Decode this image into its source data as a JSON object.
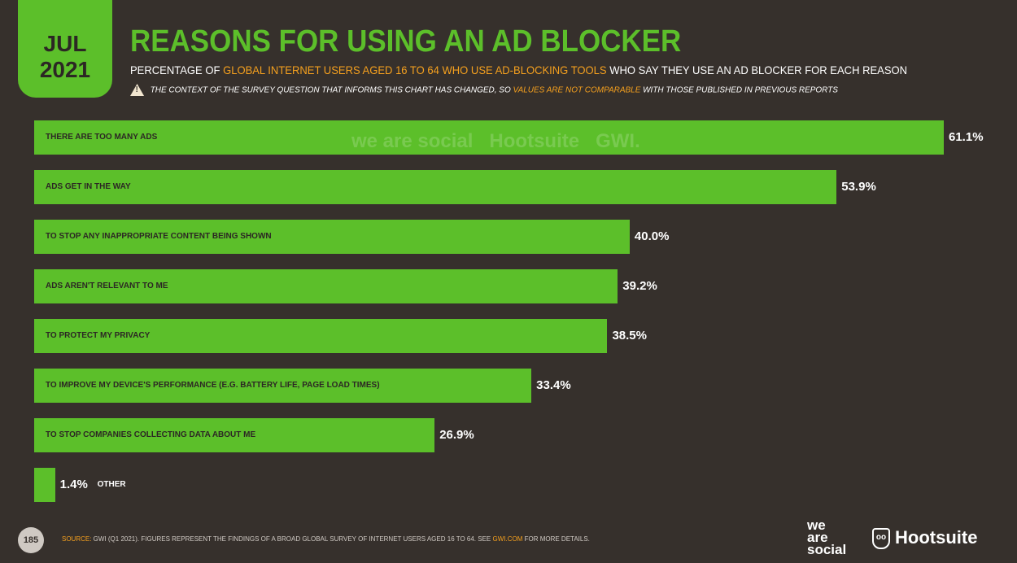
{
  "header": {
    "month": "JUL",
    "year": "2021",
    "title": "REASONS FOR USING AN AD BLOCKER",
    "subtitle_pre": "PERCENTAGE OF ",
    "subtitle_highlight": "GLOBAL INTERNET USERS AGED 16 TO 64 WHO USE AD-BLOCKING TOOLS",
    "subtitle_post": " WHO SAY THEY USE AN AD BLOCKER FOR EACH REASON",
    "note_pre": "THE CONTEXT OF THE SURVEY QUESTION THAT INFORMS THIS CHART HAS CHANGED, SO ",
    "note_highlight": "VALUES ARE NOT COMPARABLE",
    "note_post": " WITH THOSE PUBLISHED IN PREVIOUS REPORTS"
  },
  "watermark": "we are social  Hootsuite  GWI.",
  "chart_data": {
    "type": "bar",
    "orientation": "horizontal",
    "title": "REASONS FOR USING AN AD BLOCKER",
    "categories": [
      "THERE ARE TOO MANY ADS",
      "ADS GET IN THE WAY",
      "TO STOP ANY INAPPROPRIATE CONTENT BEING SHOWN",
      "ADS AREN'T RELEVANT TO ME",
      "TO PROTECT MY PRIVACY",
      "TO IMPROVE MY DEVICE'S PERFORMANCE (E.G. BATTERY LIFE, PAGE LOAD TIMES)",
      "TO STOP COMPANIES COLLECTING DATA ABOUT ME",
      "OTHER"
    ],
    "values": [
      61.1,
      53.9,
      40.0,
      39.2,
      38.5,
      33.4,
      26.9,
      1.4
    ],
    "labels": [
      "61.1%",
      "53.9%",
      "40.0%",
      "39.2%",
      "38.5%",
      "33.4%",
      "26.9%",
      "1.4%"
    ],
    "unit": "%",
    "xlim": [
      0,
      61.1
    ],
    "bar_color": "#5cbf2a"
  },
  "footer": {
    "page": "185",
    "source_label": "SOURCE:",
    "source_text": " GWI (Q1 2021). FIGURES REPRESENT THE FINDINGS OF A BROAD GLOBAL SURVEY OF INTERNET USERS AGED 16 TO 64. SEE ",
    "source_link": "GWI.COM",
    "source_end": " FOR MORE DETAILS.",
    "logo1": "we are social",
    "logo2": "Hootsuite"
  },
  "colors": {
    "accent": "#5cbf2a",
    "highlight": "#f5a01e",
    "background": "#36302c"
  }
}
